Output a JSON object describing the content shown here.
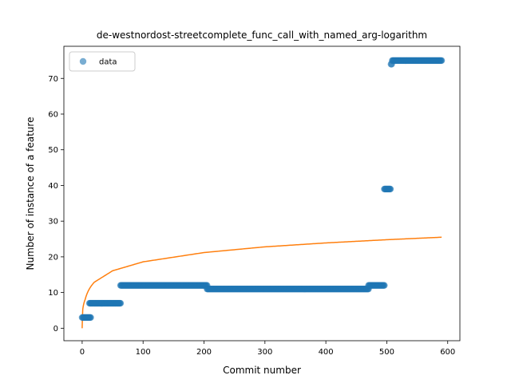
{
  "chart_data": {
    "type": "scatter",
    "title": "de-westnordost-streetcomplete_func_call_with_named_arg-logarithm",
    "xlabel": "Commit number",
    "ylabel": "Number of instance of a feature",
    "xlim": [
      -30,
      620
    ],
    "ylim": [
      -3.5,
      79
    ],
    "xticks": [
      0,
      100,
      200,
      300,
      400,
      500,
      600
    ],
    "yticks": [
      0,
      10,
      20,
      30,
      40,
      50,
      60,
      70
    ],
    "grid": false,
    "legend": {
      "position": "top-left",
      "entries": [
        "data"
      ]
    },
    "colors": {
      "data": "#1f77b4",
      "fit": "#ff7f0e"
    },
    "series": [
      {
        "name": "data",
        "kind": "scatter",
        "steps": [
          {
            "x_start": 0,
            "x_end": 14,
            "y": 3
          },
          {
            "x_start": 12,
            "x_end": 63,
            "y": 7
          },
          {
            "x_start": 63,
            "x_end": 205,
            "y": 12
          },
          {
            "x_start": 205,
            "x_end": 470,
            "y": 11
          },
          {
            "x_start": 470,
            "x_end": 496,
            "y": 12
          },
          {
            "x_start": 496,
            "x_end": 506,
            "y": 39
          },
          {
            "x_start": 507,
            "x_end": 508,
            "y": 74
          },
          {
            "x_start": 509,
            "x_end": 590,
            "y": 75
          }
        ]
      },
      {
        "kind": "line",
        "model": "logarithmic",
        "x_range": [
          0,
          590
        ],
        "points": [
          [
            0,
            0
          ],
          [
            1,
            5.3
          ],
          [
            5,
            8.1
          ],
          [
            20,
            12.9
          ],
          [
            50,
            16.1
          ],
          [
            100,
            18.6
          ],
          [
            200,
            21.2
          ],
          [
            300,
            22.8
          ],
          [
            400,
            23.9
          ],
          [
            500,
            24.8
          ],
          [
            590,
            25.5
          ]
        ]
      }
    ]
  }
}
